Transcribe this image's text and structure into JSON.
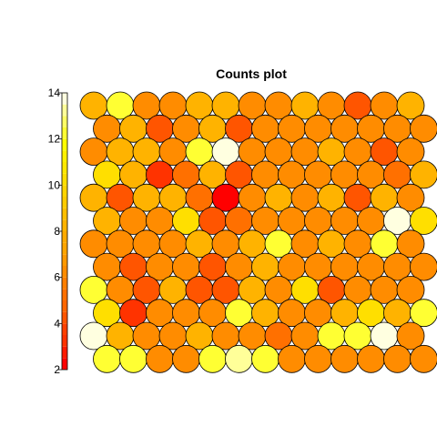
{
  "chart_data": {
    "type": "heatmap",
    "title": "Counts plot",
    "xlabel": "",
    "ylabel": "",
    "grid": false,
    "legend": "left-colorbar",
    "colorbar": {
      "range": [
        2,
        14
      ],
      "ticks": [
        2,
        4,
        6,
        8,
        10,
        12,
        14
      ],
      "bins": [
        {
          "lo": 2.0,
          "hi": 2.5,
          "color": "#ff0000"
        },
        {
          "lo": 2.5,
          "hi": 3.0,
          "color": "#ff1a00"
        },
        {
          "lo": 3.0,
          "hi": 3.5,
          "color": "#ff3300"
        },
        {
          "lo": 3.5,
          "hi": 4.0,
          "color": "#ff4000"
        },
        {
          "lo": 4.0,
          "hi": 4.5,
          "color": "#ff5500"
        },
        {
          "lo": 4.5,
          "hi": 5.0,
          "color": "#ff6600"
        },
        {
          "lo": 5.0,
          "hi": 5.5,
          "color": "#ff7000"
        },
        {
          "lo": 5.5,
          "hi": 6.0,
          "color": "#ff7f00"
        },
        {
          "lo": 6.0,
          "hi": 6.5,
          "color": "#ff8c00"
        },
        {
          "lo": 6.5,
          "hi": 7.0,
          "color": "#ff9900"
        },
        {
          "lo": 7.0,
          "hi": 7.5,
          "color": "#ffa500"
        },
        {
          "lo": 7.5,
          "hi": 8.0,
          "color": "#ffaa00"
        },
        {
          "lo": 8.0,
          "hi": 8.5,
          "color": "#ffb300"
        },
        {
          "lo": 8.5,
          "hi": 9.0,
          "color": "#ffbf00"
        },
        {
          "lo": 9.0,
          "hi": 9.5,
          "color": "#ffcc00"
        },
        {
          "lo": 9.5,
          "hi": 10.0,
          "color": "#ffd500"
        },
        {
          "lo": 10.0,
          "hi": 10.5,
          "color": "#ffdf00"
        },
        {
          "lo": 10.5,
          "hi": 11.0,
          "color": "#ffe900"
        },
        {
          "lo": 11.0,
          "hi": 11.5,
          "color": "#fff200"
        },
        {
          "lo": 11.5,
          "hi": 12.0,
          "color": "#ffff00"
        },
        {
          "lo": 12.0,
          "hi": 12.5,
          "color": "#ffff33"
        },
        {
          "lo": 12.5,
          "hi": 13.0,
          "color": "#ffff66"
        },
        {
          "lo": 13.0,
          "hi": 13.5,
          "color": "#ffff99"
        },
        {
          "lo": 13.5,
          "hi": 14.0,
          "color": "#ffffe0"
        }
      ]
    },
    "grid_size": {
      "columns": 13,
      "rows": 12
    },
    "hex_layout": "offset-rows",
    "rows": [
      [
        8,
        12,
        6,
        6,
        8,
        8,
        6,
        6,
        8,
        6,
        4,
        6,
        8
      ],
      [
        6,
        8,
        4,
        6,
        8,
        4,
        6,
        6,
        6,
        6,
        6,
        6,
        6
      ],
      [
        6,
        8,
        8,
        6,
        12,
        14,
        6,
        6,
        6,
        8,
        6,
        4,
        6
      ],
      [
        10,
        8,
        3,
        5,
        8,
        4,
        6,
        6,
        6,
        6,
        6,
        5,
        8
      ],
      [
        8,
        4,
        8,
        8,
        5,
        2,
        6,
        8,
        6,
        8,
        4,
        8,
        6
      ],
      [
        8,
        6,
        6,
        10,
        4,
        5,
        6,
        6,
        6,
        6,
        6,
        14,
        10
      ],
      [
        6,
        6,
        6,
        6,
        8,
        6,
        8,
        12,
        6,
        8,
        6,
        12,
        6
      ],
      [
        6,
        4,
        6,
        6,
        4,
        6,
        8,
        6,
        6,
        6,
        6,
        6,
        6
      ],
      [
        12,
        6,
        4,
        8,
        4,
        4,
        8,
        6,
        10,
        4,
        6,
        6,
        6
      ],
      [
        10,
        3,
        6,
        6,
        6,
        12,
        8,
        6,
        6,
        8,
        10,
        8,
        12
      ],
      [
        14,
        8,
        6,
        6,
        8,
        6,
        6,
        5,
        6,
        12,
        12,
        14,
        6
      ],
      [
        12,
        12,
        6,
        6,
        12,
        13,
        12,
        6,
        6,
        6,
        6,
        6,
        6
      ]
    ]
  }
}
